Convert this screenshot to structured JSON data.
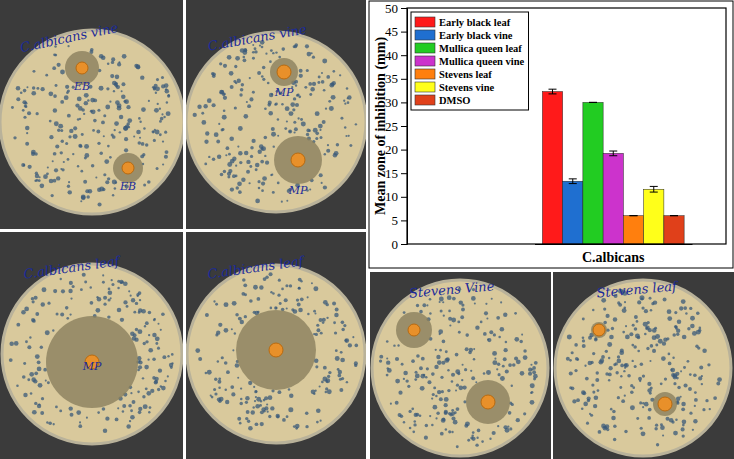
{
  "chart_data": {
    "type": "bar",
    "categories": [
      "C.albicans"
    ],
    "series": [
      {
        "name": "Early black leaf",
        "color": "#ff1a1a",
        "values": [
          32.3
        ],
        "errors": [
          0.5
        ]
      },
      {
        "name": "Early black vine",
        "color": "#1f6fd0",
        "values": [
          13.3
        ],
        "errors": [
          0.5
        ]
      },
      {
        "name": "Mullica queen leaf",
        "color": "#22cc22",
        "values": [
          30
        ],
        "errors": [
          0
        ]
      },
      {
        "name": "Mullica queen vine",
        "color": "#cc33cc",
        "values": [
          19.2
        ],
        "errors": [
          0.5
        ]
      },
      {
        "name": "Stevens leaf",
        "color": "#ff7f0e",
        "values": [
          6
        ],
        "errors": [
          0
        ]
      },
      {
        "name": "Stevens vine",
        "color": "#ffff1a",
        "values": [
          11.6
        ],
        "errors": [
          0.6
        ]
      },
      {
        "name": "DMSO",
        "color": "#e0401a",
        "values": [
          6
        ],
        "errors": [
          0
        ]
      }
    ],
    "ylabel": "Mean zone of inhibition (mm)",
    "ylim": [
      0,
      50
    ],
    "yticks": [
      0,
      5,
      10,
      15,
      20,
      25,
      30,
      35,
      40,
      45,
      50
    ],
    "legend": "upper left",
    "grid": false
  },
  "photos": [
    {
      "label": "C.albicans vine",
      "disc_labels": [
        "EB",
        "EB"
      ]
    },
    {
      "label": "C.albicans vine",
      "disc_labels": [
        "MP",
        "MP"
      ]
    },
    {
      "label": "C.albicans leaf",
      "disc_labels": [
        "MP"
      ]
    },
    {
      "label": "C.albicans leaf"
    },
    {
      "label": "Stevens Vine"
    },
    {
      "label": "Stevens leaf"
    }
  ]
}
